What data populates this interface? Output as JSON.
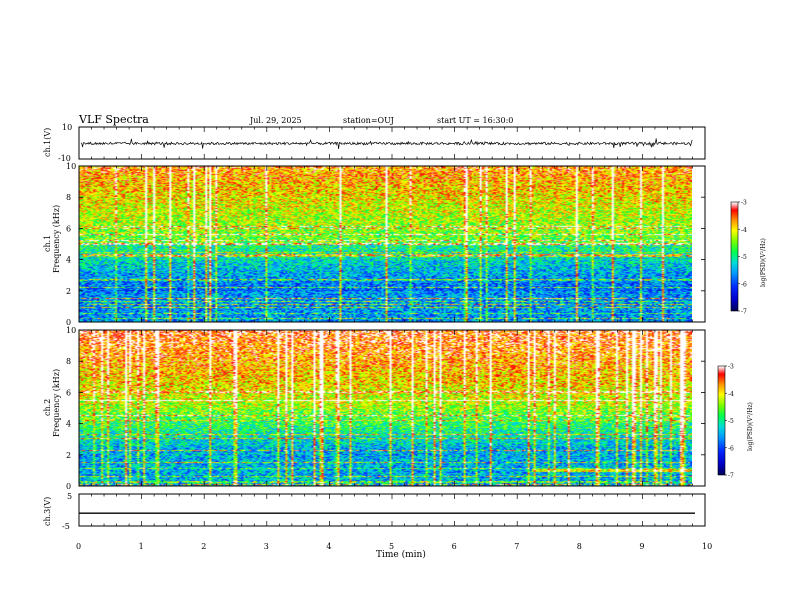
{
  "header": {
    "title": "VLF Spectra",
    "date": "Jul. 29, 2025",
    "station": "station=OUJ",
    "start": "start UT =  16:30:0"
  },
  "chart_data": [
    {
      "type": "line",
      "panel": "ch1-waveform",
      "ylabel": "ch.1(V)",
      "ylim": [
        -10,
        10
      ],
      "yticks": [
        "10",
        "-10"
      ],
      "xlim": [
        0,
        10
      ],
      "description_free": true,
      "series": [
        {
          "values_summary": "noise around -0.3 V with spikes to about +/-3 V, data until 9.8 min"
        }
      ]
    },
    {
      "type": "heatmap",
      "panel": "ch1-spectrogram",
      "ylabel": "ch.1\nFrequency (kHz)",
      "ylim": [
        0,
        10
      ],
      "yticks": [
        "0",
        "2",
        "4",
        "6",
        "8",
        "10"
      ],
      "xlim": [
        0,
        10
      ],
      "data_end_min": 9.8,
      "colorbar": {
        "label": "log(PSD)(V²/Hz)",
        "ticks": [
          "-3",
          "-4",
          "-5",
          "-6",
          "-7"
        ],
        "range": [
          -7,
          -3
        ]
      }
    },
    {
      "type": "heatmap",
      "panel": "ch2-spectrogram",
      "ylabel": "ch.2\nFrequency (kHz)",
      "ylim": [
        0,
        10
      ],
      "yticks": [
        "0",
        "2",
        "4",
        "6",
        "8",
        "10"
      ],
      "xlim": [
        0,
        10
      ],
      "data_end_min": 9.8,
      "colorbar": {
        "label": "log(PSD)(V²/Hz)",
        "ticks": [
          "-3",
          "-4",
          "-5",
          "-6",
          "-7"
        ],
        "range": [
          -7,
          -3
        ]
      }
    },
    {
      "type": "line",
      "panel": "ch3-waveform",
      "ylabel": "ch.3(V)",
      "ylim": [
        -5,
        5
      ],
      "yticks": [
        "5",
        "-5"
      ],
      "xlim": [
        0,
        10
      ],
      "series": [
        {
          "values_summary": "flat at -1 V"
        }
      ]
    }
  ],
  "xaxis": {
    "label": "Time (min)",
    "ticks": [
      "0",
      "1",
      "2",
      "3",
      "4",
      "5",
      "6",
      "7",
      "8",
      "9",
      "10"
    ]
  },
  "colors": {
    "colormap": [
      "#000080",
      "#0000ff",
      "#0080ff",
      "#00e0e0",
      "#00ff40",
      "#80ff00",
      "#ffff00",
      "#ff8000",
      "#ff0000",
      "#ffffff"
    ]
  }
}
